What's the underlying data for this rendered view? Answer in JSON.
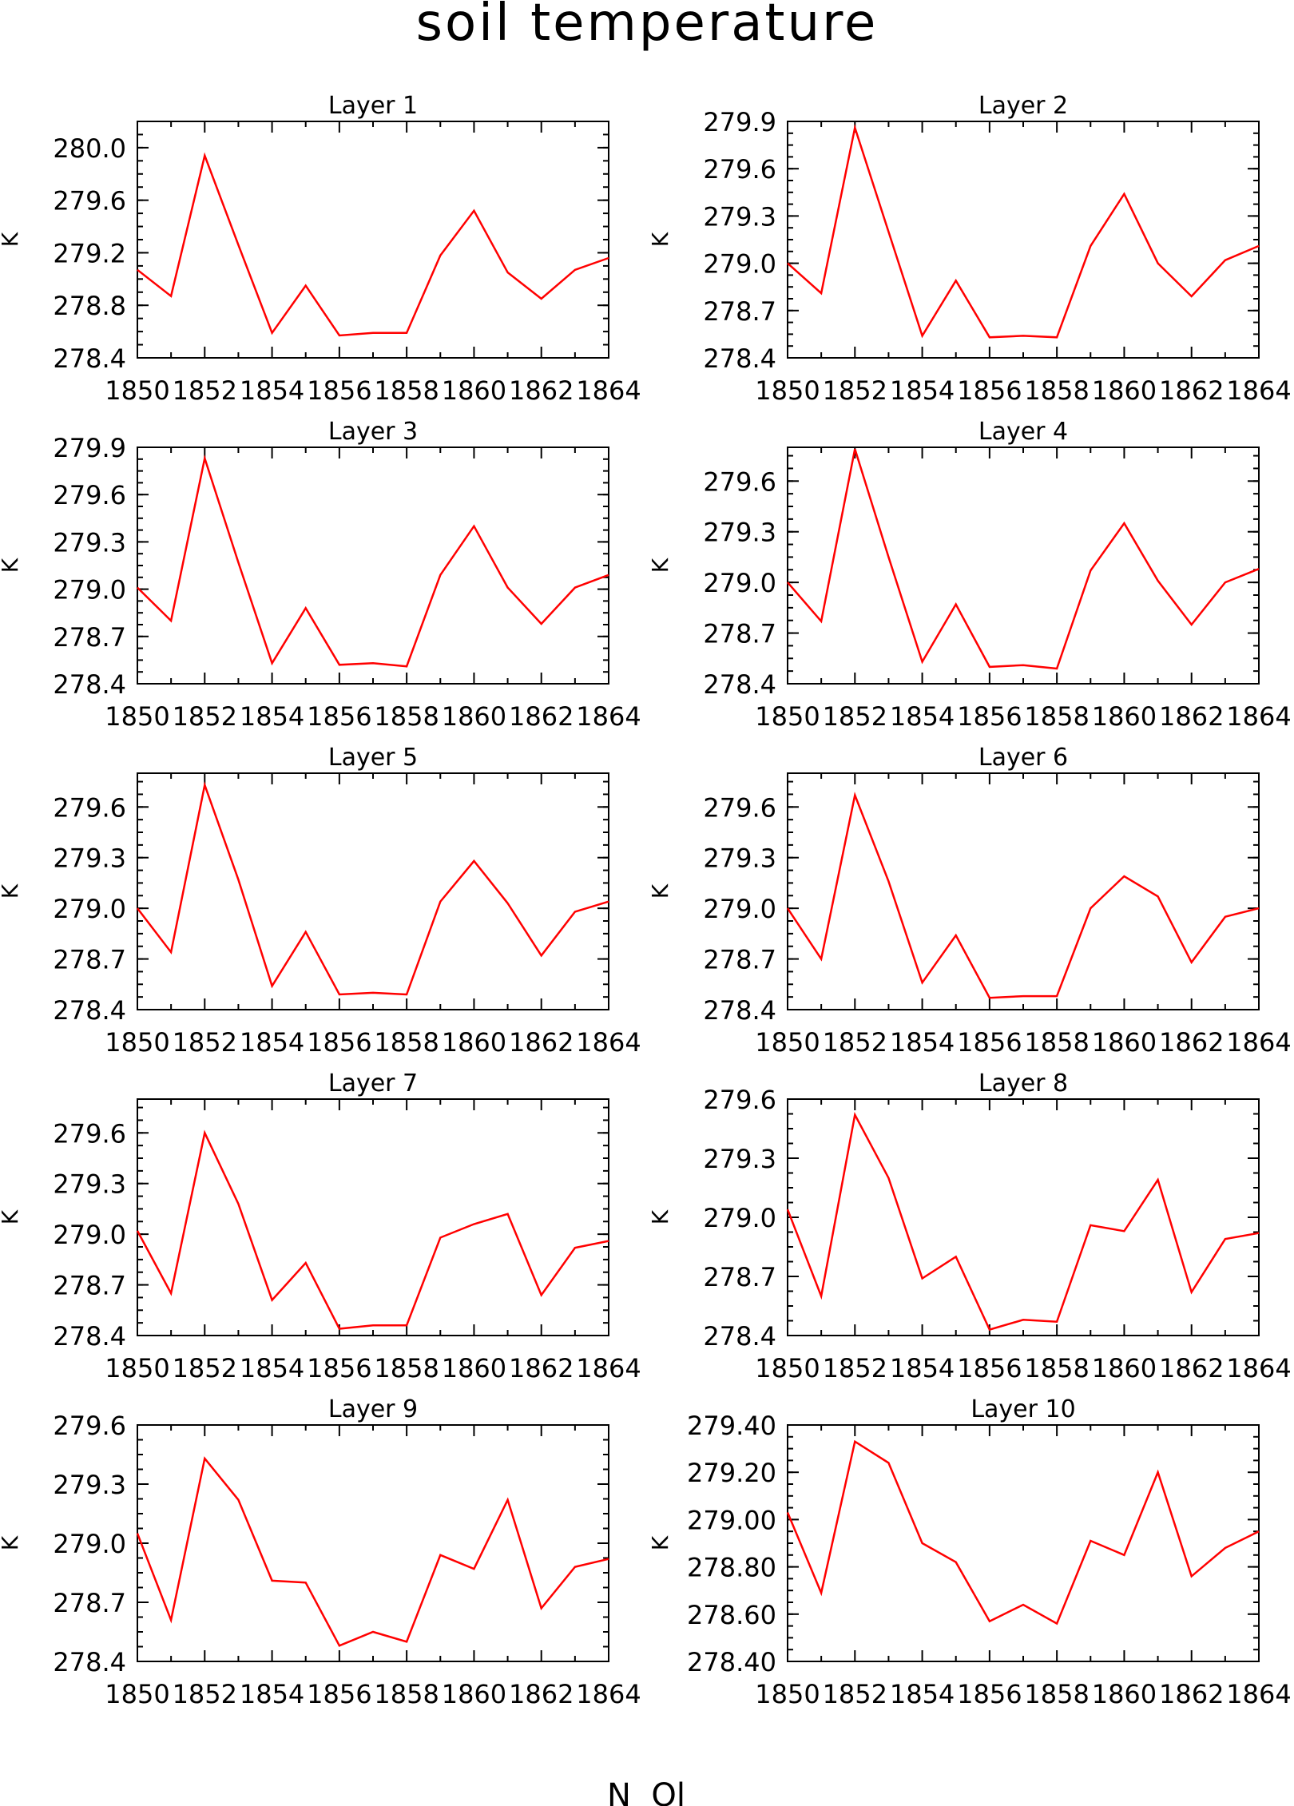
{
  "title": "soil temperature",
  "footer": "N  Ol",
  "line_color": "#ff0000",
  "chart_data": [
    {
      "type": "line",
      "title": "Layer 1",
      "ylabel": "K",
      "xlim": [
        1850,
        1864
      ],
      "ylim": [
        278.4,
        280.2
      ],
      "xticks": [
        1850,
        1852,
        1854,
        1856,
        1858,
        1860,
        1862,
        1864
      ],
      "yticks": [
        278.4,
        278.8,
        279.2,
        279.6,
        280.0
      ],
      "ytick_labels": [
        "278.4",
        "278.8",
        "279.2",
        "279.6",
        "280.0"
      ],
      "x": [
        1850,
        1851,
        1852,
        1853,
        1854,
        1855,
        1856,
        1857,
        1858,
        1859,
        1860,
        1861,
        1862,
        1863,
        1864
      ],
      "y": [
        279.07,
        278.87,
        279.94,
        279.26,
        278.59,
        278.95,
        278.57,
        278.59,
        278.59,
        279.18,
        279.52,
        279.05,
        278.85,
        279.07,
        279.16
      ]
    },
    {
      "type": "line",
      "title": "Layer 2",
      "ylabel": "K",
      "xlim": [
        1850,
        1864
      ],
      "ylim": [
        278.4,
        279.9
      ],
      "xticks": [
        1850,
        1852,
        1854,
        1856,
        1858,
        1860,
        1862,
        1864
      ],
      "yticks": [
        278.4,
        278.7,
        279.0,
        279.3,
        279.6,
        279.9
      ],
      "ytick_labels": [
        "278.4",
        "278.7",
        "279.0",
        "279.3",
        "279.6",
        "279.9"
      ],
      "x": [
        1850,
        1851,
        1852,
        1853,
        1854,
        1855,
        1856,
        1857,
        1858,
        1859,
        1860,
        1861,
        1862,
        1863,
        1864
      ],
      "y": [
        279.0,
        278.81,
        279.86,
        279.2,
        278.54,
        278.89,
        278.53,
        278.54,
        278.53,
        279.11,
        279.44,
        279.0,
        278.79,
        279.02,
        279.11
      ]
    },
    {
      "type": "line",
      "title": "Layer 3",
      "ylabel": "K",
      "xlim": [
        1850,
        1864
      ],
      "ylim": [
        278.4,
        279.9
      ],
      "xticks": [
        1850,
        1852,
        1854,
        1856,
        1858,
        1860,
        1862,
        1864
      ],
      "yticks": [
        278.4,
        278.7,
        279.0,
        279.3,
        279.6,
        279.9
      ],
      "ytick_labels": [
        "278.4",
        "278.7",
        "279.0",
        "279.3",
        "279.6",
        "279.9"
      ],
      "x": [
        1850,
        1851,
        1852,
        1853,
        1854,
        1855,
        1856,
        1857,
        1858,
        1859,
        1860,
        1861,
        1862,
        1863,
        1864
      ],
      "y": [
        279.01,
        278.8,
        279.83,
        279.17,
        278.53,
        278.88,
        278.52,
        278.53,
        278.51,
        279.09,
        279.4,
        279.01,
        278.78,
        279.01,
        279.09
      ]
    },
    {
      "type": "line",
      "title": "Layer 4",
      "ylabel": "K",
      "xlim": [
        1850,
        1864
      ],
      "ylim": [
        278.4,
        279.8
      ],
      "xticks": [
        1850,
        1852,
        1854,
        1856,
        1858,
        1860,
        1862,
        1864
      ],
      "yticks": [
        278.4,
        278.7,
        279.0,
        279.3,
        279.6
      ],
      "ytick_labels": [
        "278.4",
        "278.7",
        "279.0",
        "279.3",
        "279.6"
      ],
      "x": [
        1850,
        1851,
        1852,
        1853,
        1854,
        1855,
        1856,
        1857,
        1858,
        1859,
        1860,
        1861,
        1862,
        1863,
        1864
      ],
      "y": [
        279.0,
        278.77,
        279.79,
        279.15,
        278.53,
        278.87,
        278.5,
        278.51,
        278.49,
        279.07,
        279.35,
        279.01,
        278.75,
        279.0,
        279.08
      ]
    },
    {
      "type": "line",
      "title": "Layer 5",
      "ylabel": "K",
      "xlim": [
        1850,
        1864
      ],
      "ylim": [
        278.4,
        279.8
      ],
      "xticks": [
        1850,
        1852,
        1854,
        1856,
        1858,
        1860,
        1862,
        1864
      ],
      "yticks": [
        278.4,
        278.7,
        279.0,
        279.3,
        279.6
      ],
      "ytick_labels": [
        "278.4",
        "278.7",
        "279.0",
        "279.3",
        "279.6"
      ],
      "x": [
        1850,
        1851,
        1852,
        1853,
        1854,
        1855,
        1856,
        1857,
        1858,
        1859,
        1860,
        1861,
        1862,
        1863,
        1864
      ],
      "y": [
        279.0,
        278.74,
        279.73,
        279.17,
        278.54,
        278.86,
        278.49,
        278.5,
        278.49,
        279.04,
        279.28,
        279.03,
        278.72,
        278.98,
        279.04
      ]
    },
    {
      "type": "line",
      "title": "Layer 6",
      "ylabel": "K",
      "xlim": [
        1850,
        1864
      ],
      "ylim": [
        278.4,
        279.8
      ],
      "xticks": [
        1850,
        1852,
        1854,
        1856,
        1858,
        1860,
        1862,
        1864
      ],
      "yticks": [
        278.4,
        278.7,
        279.0,
        279.3,
        279.6
      ],
      "ytick_labels": [
        "278.4",
        "278.7",
        "279.0",
        "279.3",
        "279.6"
      ],
      "x": [
        1850,
        1851,
        1852,
        1853,
        1854,
        1855,
        1856,
        1857,
        1858,
        1859,
        1860,
        1861,
        1862,
        1863,
        1864
      ],
      "y": [
        279.0,
        278.7,
        279.67,
        279.16,
        278.56,
        278.84,
        278.47,
        278.48,
        278.48,
        279.0,
        279.19,
        279.07,
        278.68,
        278.95,
        279.0
      ]
    },
    {
      "type": "line",
      "title": "Layer 7",
      "ylabel": "K",
      "xlim": [
        1850,
        1864
      ],
      "ylim": [
        278.4,
        279.8
      ],
      "xticks": [
        1850,
        1852,
        1854,
        1856,
        1858,
        1860,
        1862,
        1864
      ],
      "yticks": [
        278.4,
        278.7,
        279.0,
        279.3,
        279.6
      ],
      "ytick_labels": [
        "278.4",
        "278.7",
        "279.0",
        "279.3",
        "279.6"
      ],
      "x": [
        1850,
        1851,
        1852,
        1853,
        1854,
        1855,
        1856,
        1857,
        1858,
        1859,
        1860,
        1861,
        1862,
        1863,
        1864
      ],
      "y": [
        279.02,
        278.65,
        279.6,
        279.18,
        278.61,
        278.83,
        278.44,
        278.46,
        278.46,
        278.98,
        279.06,
        279.12,
        278.64,
        278.92,
        278.96
      ]
    },
    {
      "type": "line",
      "title": "Layer 8",
      "ylabel": "K",
      "xlim": [
        1850,
        1864
      ],
      "ylim": [
        278.4,
        279.6
      ],
      "xticks": [
        1850,
        1852,
        1854,
        1856,
        1858,
        1860,
        1862,
        1864
      ],
      "yticks": [
        278.4,
        278.7,
        279.0,
        279.3,
        279.6
      ],
      "ytick_labels": [
        "278.4",
        "278.7",
        "279.0",
        "279.3",
        "279.6"
      ],
      "x": [
        1850,
        1851,
        1852,
        1853,
        1854,
        1855,
        1856,
        1857,
        1858,
        1859,
        1860,
        1861,
        1862,
        1863,
        1864
      ],
      "y": [
        279.04,
        278.6,
        279.52,
        279.2,
        278.69,
        278.8,
        278.43,
        278.48,
        278.47,
        278.96,
        278.93,
        279.19,
        278.62,
        278.89,
        278.92
      ]
    },
    {
      "type": "line",
      "title": "Layer 9",
      "ylabel": "K",
      "xlim": [
        1850,
        1864
      ],
      "ylim": [
        278.4,
        279.6
      ],
      "xticks": [
        1850,
        1852,
        1854,
        1856,
        1858,
        1860,
        1862,
        1864
      ],
      "yticks": [
        278.4,
        278.7,
        279.0,
        279.3,
        279.6
      ],
      "ytick_labels": [
        "278.4",
        "278.7",
        "279.0",
        "279.3",
        "279.6"
      ],
      "x": [
        1850,
        1851,
        1852,
        1853,
        1854,
        1855,
        1856,
        1857,
        1858,
        1859,
        1860,
        1861,
        1862,
        1863,
        1864
      ],
      "y": [
        279.05,
        278.61,
        279.43,
        279.22,
        278.81,
        278.8,
        278.48,
        278.55,
        278.5,
        278.94,
        278.87,
        279.22,
        278.67,
        278.88,
        278.92
      ]
    },
    {
      "type": "line",
      "title": "Layer 10",
      "ylabel": "K",
      "xlim": [
        1850,
        1864
      ],
      "ylim": [
        278.4,
        279.4
      ],
      "xticks": [
        1850,
        1852,
        1854,
        1856,
        1858,
        1860,
        1862,
        1864
      ],
      "yticks": [
        278.4,
        278.6,
        278.8,
        279.0,
        279.2,
        279.4
      ],
      "ytick_labels": [
        "278.40",
        "278.60",
        "278.80",
        "279.00",
        "279.20",
        "279.40"
      ],
      "x": [
        1850,
        1851,
        1852,
        1853,
        1854,
        1855,
        1856,
        1857,
        1858,
        1859,
        1860,
        1861,
        1862,
        1863,
        1864
      ],
      "y": [
        279.03,
        278.69,
        279.33,
        279.24,
        278.9,
        278.82,
        278.57,
        278.64,
        278.56,
        278.91,
        278.85,
        279.2,
        278.76,
        278.88,
        278.95
      ]
    }
  ]
}
